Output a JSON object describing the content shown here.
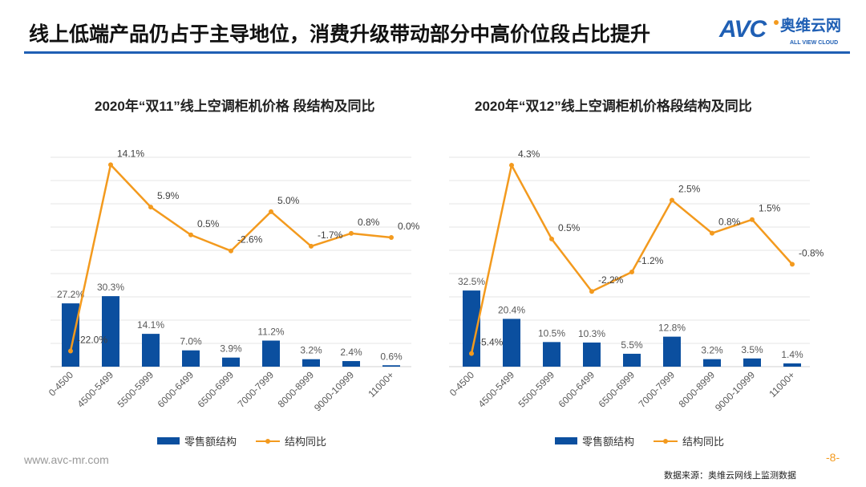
{
  "title": "线上低端产品仍占于主导地位，消费升级带动部分中高价位段占比提升",
  "logo": {
    "mark": "AVC",
    "cn": "奥维云网",
    "en": "ALL VIEW CLOUD"
  },
  "footer": {
    "url": "www.avc-mr.com",
    "page": "-8-",
    "source": "数据来源：奥维云网线上监测数据"
  },
  "colors": {
    "bar": "#0b4f9f",
    "line": "#f39a1e",
    "accent": "#1f5fb4"
  },
  "chart_data": [
    {
      "type": "bar+line",
      "title": "2020年“双11”线上空调柜机价格 段结构及同比",
      "categories": [
        "0-4500",
        "4500-5499",
        "5500-5999",
        "6000-6499",
        "6500-6999",
        "7000-7999",
        "8000-8999",
        "9000-10999",
        "11000+"
      ],
      "series": [
        {
          "name": "零售额结构",
          "type": "bar",
          "values": [
            27.2,
            30.3,
            14.1,
            7.0,
            3.9,
            11.2,
            3.2,
            2.4,
            0.6
          ],
          "labels": [
            "27.2%",
            "30.3%",
            "14.1%",
            "7.0%",
            "3.9%",
            "11.2%",
            "3.2%",
            "2.4%",
            "0.6%"
          ]
        },
        {
          "name": "结构同比",
          "type": "line",
          "values": [
            -22.0,
            14.1,
            5.9,
            0.5,
            -2.6,
            5.0,
            -1.7,
            0.8,
            0.0
          ],
          "labels": [
            "-22.0%",
            "14.1%",
            "5.9%",
            "0.5%",
            "-2.6%",
            "5.0%",
            "-1.7%",
            "0.8%",
            "0.0%"
          ]
        }
      ],
      "legend": "bottom"
    },
    {
      "type": "bar+line",
      "title": "2020年“双12”线上空调柜机价格段结构及同比",
      "categories": [
        "0-4500",
        "4500-5499",
        "5500-5999",
        "6000-6499",
        "6500-6999",
        "7000-7999",
        "8000-8999",
        "9000-10999",
        "11000+"
      ],
      "series": [
        {
          "name": "零售额结构",
          "type": "bar",
          "values": [
            32.5,
            20.4,
            10.5,
            10.3,
            5.5,
            12.8,
            3.2,
            3.5,
            1.4
          ],
          "labels": [
            "32.5%",
            "20.4%",
            "10.5%",
            "10.3%",
            "5.5%",
            "12.8%",
            "3.2%",
            "3.5%",
            "1.4%"
          ]
        },
        {
          "name": "结构同比",
          "type": "line",
          "values": [
            -5.4,
            4.3,
            0.5,
            -2.2,
            -1.2,
            2.5,
            0.8,
            1.5,
            -0.8
          ],
          "labels": [
            "-5.4%",
            "4.3%",
            "0.5%",
            "-2.2%",
            "-1.2%",
            "2.5%",
            "0.8%",
            "1.5%",
            "-0.8%"
          ]
        }
      ],
      "legend": "bottom"
    }
  ]
}
